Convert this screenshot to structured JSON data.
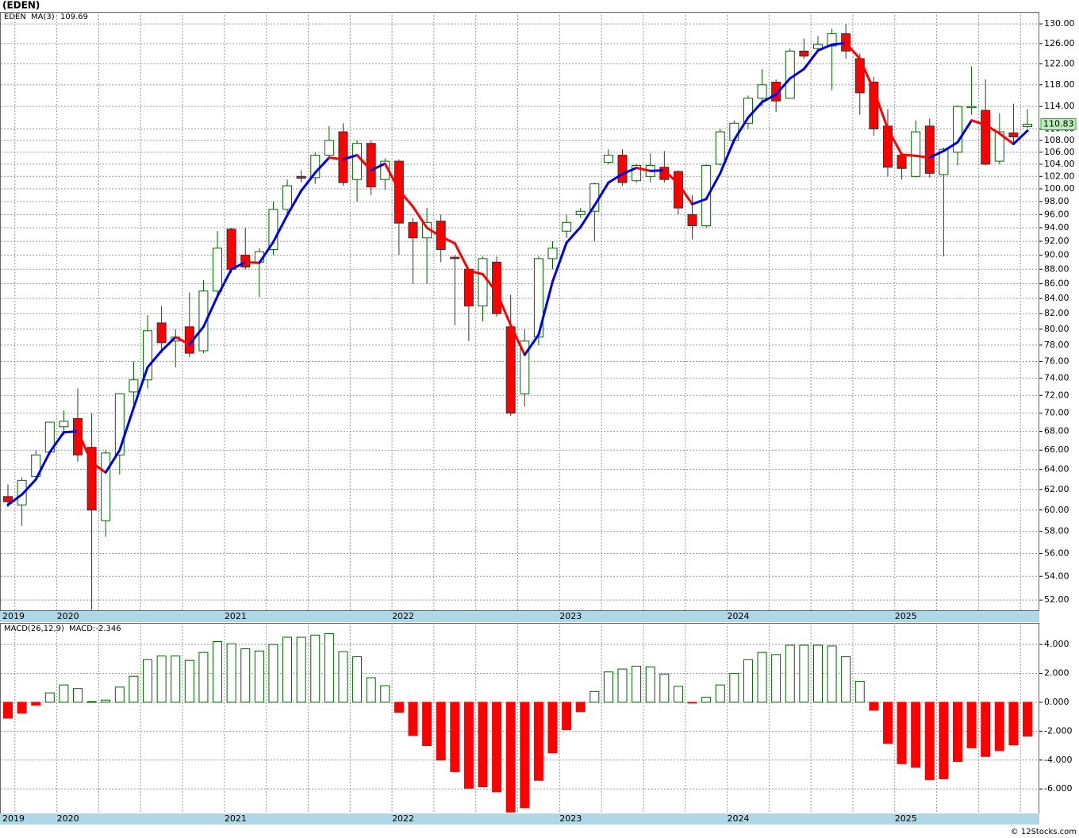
{
  "chart_data": [
    {
      "type": "candlestick",
      "title": "(EDEN)",
      "symbol": "EDEN",
      "ma_name": "MA(3)",
      "ma_label": "109.69",
      "categories": [
        "2019",
        null,
        null,
        null,
        "2020",
        null,
        null,
        null,
        null,
        null,
        null,
        null,
        null,
        null,
        null,
        null,
        "2021",
        null,
        null,
        null,
        null,
        null,
        null,
        null,
        null,
        null,
        null,
        null,
        "2022",
        null,
        null,
        null,
        null,
        null,
        null,
        null,
        null,
        null,
        null,
        null,
        "2023",
        null,
        null,
        null,
        null,
        null,
        null,
        null,
        null,
        null,
        null,
        null,
        "2024",
        null,
        null,
        null,
        null,
        null,
        null,
        null,
        null,
        null,
        null,
        null,
        "2025",
        null,
        null,
        null,
        null,
        null,
        null,
        null,
        null,
        null
      ],
      "open": [
        61.3,
        60.5,
        63.3,
        65.8,
        68.5,
        69.4,
        66.3,
        59,
        65.5,
        72.4,
        73.8,
        80.8,
        78.5,
        80.3,
        77.3,
        85,
        93.8,
        90,
        89,
        90.8,
        96.8,
        102,
        101.8,
        105.5,
        109.5,
        101.5,
        107.5,
        101.5,
        104.5,
        94.8,
        92.5,
        95,
        89.7,
        88,
        83,
        89,
        80.3,
        72.2,
        79,
        89.5,
        93.5,
        96,
        96.5,
        104.3,
        105.5,
        101.3,
        102,
        103.5,
        102.8,
        96,
        94.3,
        104,
        108,
        111,
        115.5,
        118.5,
        115.5,
        124.5,
        125,
        125.5,
        128,
        123,
        118.5,
        110.5,
        105.5,
        102,
        110.5,
        102.3,
        106,
        113.8,
        113.3,
        104.5,
        109.3,
        110.4
      ],
      "high": [
        62.5,
        63.2,
        66,
        69,
        70.3,
        72.8,
        70,
        66,
        72.2,
        76,
        81.8,
        83,
        80,
        84.8,
        86.5,
        93.5,
        94,
        94,
        91,
        98,
        101.5,
        103,
        106,
        110.5,
        111,
        108,
        108,
        105,
        104.8,
        95.5,
        97,
        96,
        90,
        88,
        89.8,
        89.8,
        84.5,
        80,
        89.8,
        92,
        96,
        97,
        101,
        106.5,
        106.5,
        104,
        105.8,
        106.2,
        103,
        99,
        104,
        110,
        111.5,
        116,
        121,
        119,
        125,
        127,
        127.5,
        129,
        130,
        124,
        119.5,
        113.5,
        106,
        111.5,
        111.8,
        106.8,
        114.2,
        121.5,
        119,
        112.8,
        114.5,
        113.5
      ],
      "low": [
        60.3,
        58.5,
        63,
        65.5,
        67.6,
        64.8,
        51.2,
        57.5,
        63.5,
        71,
        72.8,
        77,
        75.3,
        76.5,
        77,
        84,
        87.5,
        88,
        84.2,
        90,
        96,
        101,
        100.8,
        105,
        100.5,
        98,
        99,
        99.8,
        90,
        86,
        86,
        89,
        80.5,
        78.5,
        81,
        81.6,
        69.7,
        70.7,
        78,
        88,
        92.5,
        95.5,
        92,
        104,
        100.5,
        101,
        101,
        101,
        96,
        92.3,
        94,
        103.8,
        107.5,
        110,
        114,
        113,
        115.5,
        123,
        124.5,
        117,
        123,
        112.5,
        108.8,
        102,
        101.5,
        101.8,
        101.8,
        89.8,
        103.8,
        112.5,
        103.8,
        104,
        107.5,
        110.2
      ],
      "close": [
        60.8,
        62.9,
        65.5,
        69,
        69.1,
        65.5,
        60,
        65.7,
        72.2,
        73.8,
        79.8,
        78.3,
        79,
        77,
        85,
        91,
        88,
        88.3,
        90.5,
        96.8,
        100.5,
        101.7,
        105.5,
        108,
        101,
        107.5,
        100.3,
        104.5,
        94.7,
        92.5,
        94.8,
        90.8,
        89.5,
        83,
        89.5,
        82,
        70,
        78.5,
        89.5,
        91,
        94.8,
        96.5,
        100.8,
        105.5,
        101,
        103.8,
        103.8,
        101.5,
        97,
        94.3,
        103.8,
        109.5,
        111,
        115.5,
        118,
        115,
        124.5,
        123.5,
        125.8,
        128,
        124.5,
        116.5,
        110,
        103.5,
        103.3,
        109.5,
        102.5,
        106.5,
        114,
        114,
        104,
        109.5,
        108.6,
        110.83
      ],
      "last_label": "110.83",
      "ma": [
        60.5,
        61.5,
        63,
        65.8,
        67.9,
        68,
        64.7,
        63.7,
        66,
        70.6,
        75.3,
        77.3,
        79,
        78.1,
        80.3,
        84.3,
        88,
        89,
        88.9,
        91.9,
        95.9,
        99.7,
        102.6,
        105.1,
        104.8,
        105.5,
        103,
        104.1,
        99.8,
        97.2,
        94,
        92.7,
        91.7,
        87.8,
        87.3,
        84.8,
        80.5,
        76.8,
        79.3,
        86.3,
        91.8,
        94.1,
        97.4,
        101,
        102.4,
        103.4,
        102.9,
        103,
        100.8,
        97.6,
        98.4,
        102.5,
        108.1,
        112,
        114.8,
        116.2,
        119.2,
        121,
        124.6,
        125.8,
        126.1,
        123,
        117,
        110,
        105.6,
        105.4,
        105.1,
        106.2,
        107.7,
        111.5,
        110.7,
        109.2,
        107.4,
        109.69
      ],
      "up_color": "#006400",
      "down_color": "#ff0000",
      "ma_up_color": "#0000ee",
      "ma_down_color": "#ff0000",
      "log_scale": true,
      "grid": true,
      "ylim": [
        51.1,
        132.5
      ],
      "yticks": [
        {
          "value": 52,
          "label": "52.00"
        },
        {
          "value": 54,
          "label": "54.00"
        },
        {
          "value": 56,
          "label": "56.00"
        },
        {
          "value": 58,
          "label": "58.00"
        },
        {
          "value": 60,
          "label": "60.00"
        },
        {
          "value": 62,
          "label": "62.00"
        },
        {
          "value": 64,
          "label": "64.00"
        },
        {
          "value": 66,
          "label": "66.00"
        },
        {
          "value": 68,
          "label": "68.00"
        },
        {
          "value": 70,
          "label": "70.00"
        },
        {
          "value": 72,
          "label": "72.00"
        },
        {
          "value": 74,
          "label": "74.00"
        },
        {
          "value": 76,
          "label": "76.00"
        },
        {
          "value": 78,
          "label": "78.00"
        },
        {
          "value": 80,
          "label": "80.00"
        },
        {
          "value": 82,
          "label": "82.00"
        },
        {
          "value": 84,
          "label": "84.00"
        },
        {
          "value": 86,
          "label": "86.00"
        },
        {
          "value": 88,
          "label": "88.00"
        },
        {
          "value": 90,
          "label": "90.00"
        },
        {
          "value": 92,
          "label": "92.00"
        },
        {
          "value": 94,
          "label": "94.00"
        },
        {
          "value": 96,
          "label": "96.00"
        },
        {
          "value": 98,
          "label": "98.00"
        },
        {
          "value": 100,
          "label": "100.00"
        },
        {
          "value": 102,
          "label": "102.00"
        },
        {
          "value": 104,
          "label": "104.00"
        },
        {
          "value": 106,
          "label": "106.00"
        },
        {
          "value": 108,
          "label": "108.00"
        },
        {
          "value": 110,
          "label": "110.00"
        },
        {
          "value": 114,
          "label": "114.00"
        },
        {
          "value": 118,
          "label": "118.00"
        },
        {
          "value": 122,
          "label": "122.00"
        },
        {
          "value": 126,
          "label": "126.00"
        },
        {
          "value": 130,
          "label": "130.00"
        }
      ]
    },
    {
      "type": "bar",
      "title": "MACD(26,12,9)",
      "value_label": "MACD:-2.346",
      "values": [
        -1.1,
        -0.75,
        -0.2,
        0.65,
        1.2,
        0.95,
        0.05,
        0.15,
        1.05,
        1.8,
        2.95,
        3.2,
        3.2,
        2.9,
        3.45,
        4.2,
        4.05,
        3.7,
        3.55,
        4.0,
        4.5,
        4.5,
        4.65,
        4.75,
        3.5,
        3.15,
        1.7,
        1.15,
        -0.7,
        -2.3,
        -3.0,
        -4.0,
        -4.8,
        -5.95,
        -5.85,
        -6.2,
        -7.6,
        -7.3,
        -5.4,
        -3.5,
        -1.9,
        -0.65,
        0.75,
        2.1,
        2.3,
        2.5,
        2.45,
        1.95,
        1.1,
        -0.05,
        0.35,
        1.2,
        2.0,
        2.95,
        3.45,
        3.3,
        3.95,
        3.95,
        3.95,
        3.9,
        3.15,
        1.45,
        -0.55,
        -2.85,
        -4.25,
        -4.5,
        -5.35,
        -5.3,
        -4.1,
        -3.15,
        -3.75,
        -3.35,
        -2.95,
        -2.346
      ],
      "pos_color": "#006400",
      "neg_color": "#ff0000",
      "ylim": [
        -7.69,
        5.49
      ],
      "yticks": [
        {
          "value": 4,
          "label": "4.000"
        },
        {
          "value": 2,
          "label": "2.000"
        },
        {
          "value": 0,
          "label": "0.000"
        },
        {
          "value": -2,
          "label": "-2.000"
        },
        {
          "value": -4,
          "label": "-4.000"
        },
        {
          "value": -6,
          "label": "-6.000"
        }
      ],
      "grid": true
    }
  ],
  "footer": "© 12Stocks.com"
}
